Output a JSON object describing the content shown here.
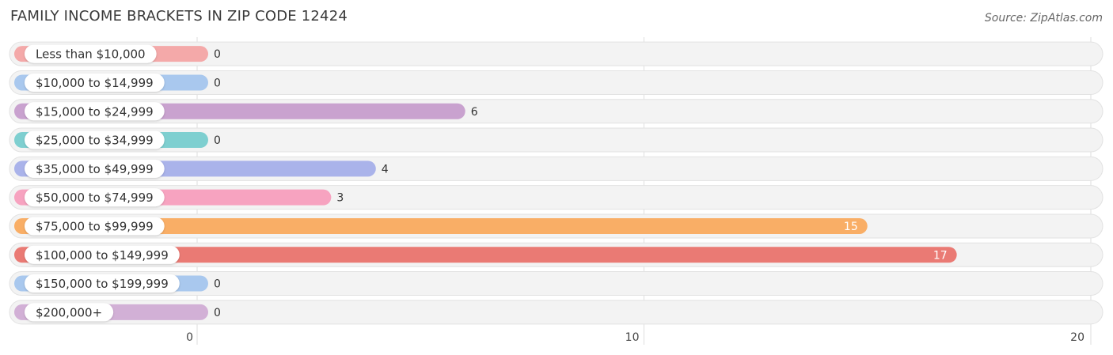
{
  "chart_data": {
    "type": "bar",
    "orientation": "horizontal",
    "title": "FAMILY INCOME BRACKETS IN ZIP CODE 12424",
    "source": "Source: ZipAtlas.com",
    "categories": [
      "Less than $10,000",
      "$10,000 to $14,999",
      "$15,000 to $24,999",
      "$25,000 to $34,999",
      "$35,000 to $49,999",
      "$50,000 to $74,999",
      "$75,000 to $99,999",
      "$100,000 to $149,999",
      "$150,000 to $199,999",
      "$200,000+"
    ],
    "values": [
      0,
      0,
      6,
      0,
      4,
      3,
      15,
      17,
      0,
      0
    ],
    "value_labels": [
      "0",
      "0",
      "6",
      "0",
      "4",
      "3",
      "15",
      "17",
      "0",
      "0"
    ],
    "colors": [
      "#f4a9a9",
      "#a9c8ee",
      "#c9a2cf",
      "#7ecfd0",
      "#aab3ea",
      "#f7a3c0",
      "#f9ae66",
      "#ea7a74",
      "#a9c8ee",
      "#d2b0d6"
    ],
    "xlim": [
      0,
      20
    ],
    "x_ticks": [
      0,
      10,
      20
    ],
    "x_tick_labels": [
      "0",
      "10",
      "20"
    ],
    "grid": true
  }
}
